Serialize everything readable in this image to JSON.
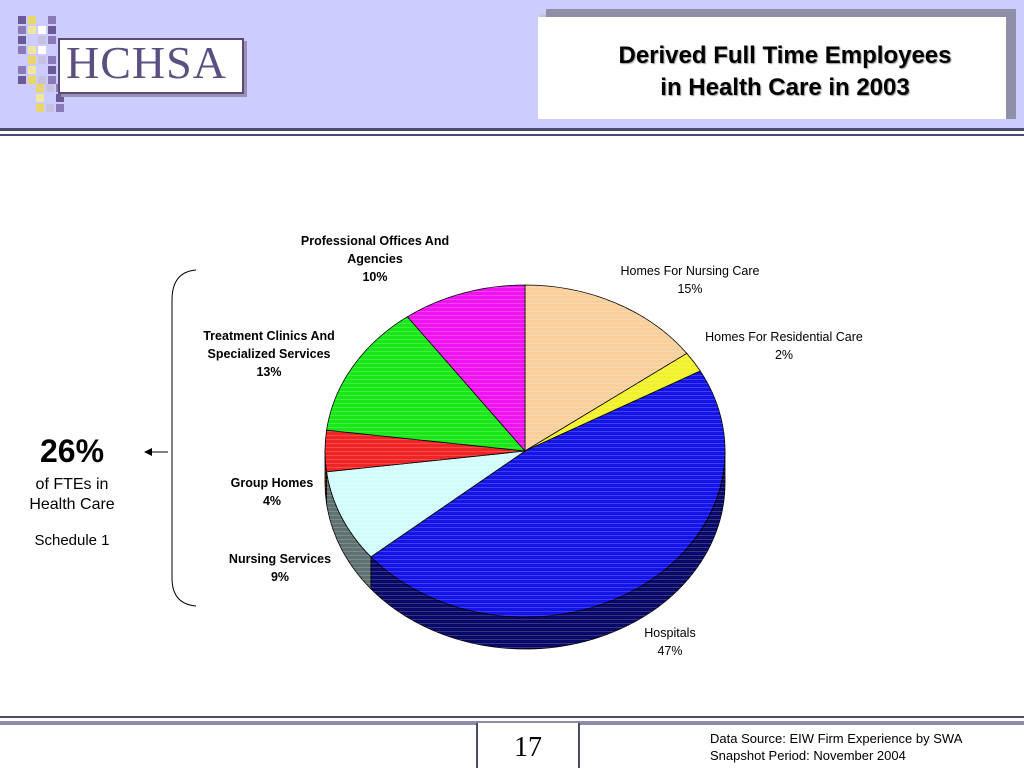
{
  "header": {
    "logo_text": "HCHSA",
    "title_line1": "Derived Full Time Employees",
    "title_line2": "in Health Care in 2003"
  },
  "chart_data": {
    "type": "pie",
    "style": "3d",
    "title": "",
    "slices": [
      {
        "label": "Homes For Nursing Care",
        "value": 15,
        "display": "15%",
        "color": "#f9cf9c",
        "bold": false
      },
      {
        "label": "Homes For Residential Care",
        "value": 2,
        "display": "2%",
        "color": "#f2f22a",
        "bold": false
      },
      {
        "label": "Hospitals",
        "value": 47,
        "display": "47%",
        "color": "#1414e8",
        "bold": false
      },
      {
        "label": "Nursing Services",
        "value": 9,
        "display": "9%",
        "color": "#d2fcfc",
        "bold": true
      },
      {
        "label": "Group Homes",
        "value": 4,
        "display": "4%",
        "color": "#f02424",
        "bold": true
      },
      {
        "label": "Treatment Clinics And Specialized Services",
        "value": 13,
        "display": "13%",
        "color": "#18e818",
        "bold": true
      },
      {
        "label": "Professional Offices And Agencies",
        "value": 10,
        "display": "10%",
        "color": "#f012f0",
        "bold": true
      }
    ]
  },
  "labels": {
    "nursing_care": {
      "line1": "Homes For Nursing Care",
      "line2": "15%"
    },
    "residential_care": {
      "line1": "Homes For Residential Care",
      "line2": "2%"
    },
    "hospitals": {
      "line1": "Hospitals",
      "line2": "47%"
    },
    "nursing_services": {
      "line1": "Nursing Services",
      "line2": "9%"
    },
    "group_homes": {
      "line1": "Group Homes",
      "line2": "4%"
    },
    "treatment": {
      "line1": "Treatment Clinics And",
      "line2": "Specialized Services",
      "line3": "13%"
    },
    "professional": {
      "line1": "Professional Offices And",
      "line2": "Agencies",
      "line3": "10%"
    }
  },
  "callout": {
    "percent": "26%",
    "line1": "of FTEs in",
    "line2": "Health Care",
    "schedule": "Schedule  1"
  },
  "footer": {
    "page_number": "17",
    "source_line1": "Data Source: EIW Firm Experience by SWA",
    "source_line2": "Snapshot Period: November 2004"
  }
}
